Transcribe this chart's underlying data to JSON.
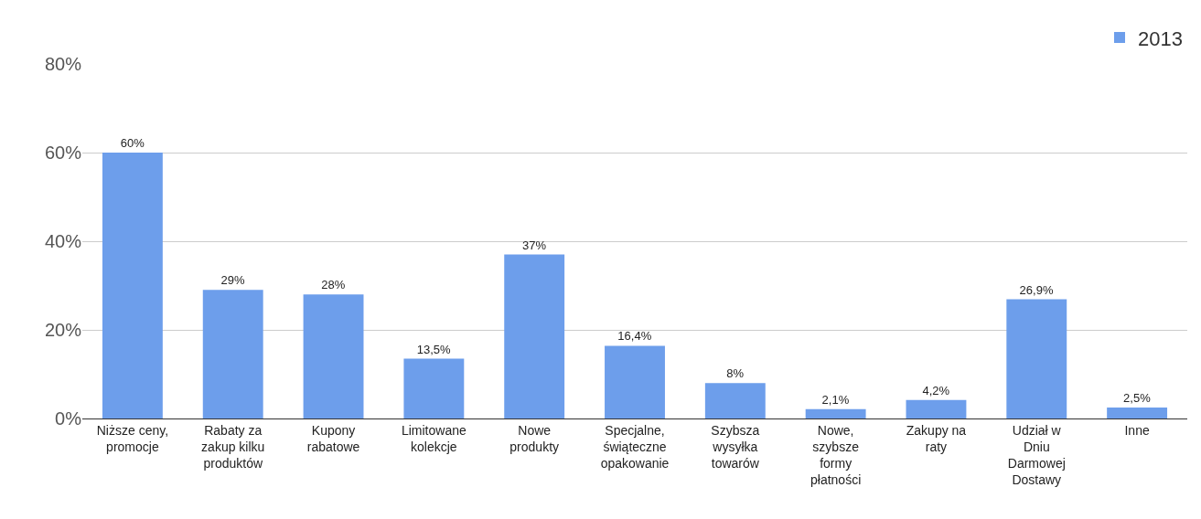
{
  "chart_data": {
    "type": "bar",
    "categories": [
      "Niższe ceny, promocje",
      "Rabaty za zakup kilku produktów",
      "Kupony rabatowe",
      "Limitowane kolekcje",
      "Nowe produkty",
      "Specjalne, świąteczne opakowanie",
      "Szybsza wysyłka towarów",
      "Nowe, szybsze formy płatności",
      "Zakupy na raty",
      "Udział w Dniu Darmowej Dostawy",
      "Inne"
    ],
    "series": [
      {
        "name": "2013",
        "color": "#6d9eeb",
        "values": [
          60,
          29,
          28,
          13.5,
          37,
          16.4,
          8,
          2.1,
          4.2,
          26.9,
          2.5
        ],
        "value_labels": [
          "60%",
          "29%",
          "28%",
          "13,5%",
          "37%",
          "16,4%",
          "8%",
          "2,1%",
          "4,2%",
          "26,9%",
          "2,5%"
        ]
      }
    ],
    "ylim": [
      0,
      80
    ],
    "yticks": [
      {
        "value": 0,
        "label": "0%"
      },
      {
        "value": 20,
        "label": "20%"
      },
      {
        "value": 40,
        "label": "40%"
      },
      {
        "value": 60,
        "label": "60%"
      },
      {
        "value": 80,
        "label": "80%"
      }
    ],
    "grid": "y",
    "legend": "top right"
  }
}
